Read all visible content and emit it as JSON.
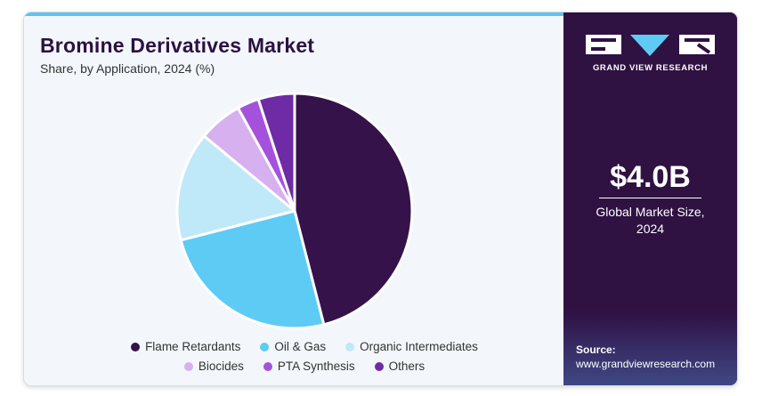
{
  "title": "Bromine Derivatives Market",
  "subtitle": "Share, by Application, 2024 (%)",
  "brand": {
    "name": "GRAND VIEW RESEARCH"
  },
  "stat": {
    "value": "$4.0B",
    "label_line1": "Global Market Size,",
    "label_line2": "2024"
  },
  "source": {
    "label": "Source:",
    "url": "www.grandviewresearch.com"
  },
  "chart_data": {
    "type": "pie",
    "categories": [
      "Flame Retardants",
      "Oil & Gas",
      "Organic Intermediates",
      "Biocides",
      "PTA Synthesis",
      "Others"
    ],
    "values": [
      46,
      25,
      15,
      6,
      3,
      5
    ],
    "colors": [
      "#35124a",
      "#5ecbf5",
      "#bfe8f9",
      "#d7b0ef",
      "#a452dc",
      "#6f2aa6"
    ],
    "start_angle_deg": 0,
    "legend": "bottom"
  }
}
